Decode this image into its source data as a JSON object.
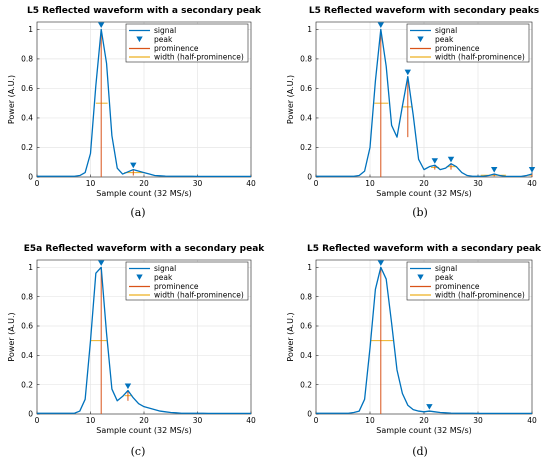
{
  "chart_data": [
    {
      "type": "line",
      "panel": "a",
      "caption": "(a)",
      "title": "L5 Reflected waveform with a secondary peak",
      "xlabel": "Sample count (32 MS/s)",
      "ylabel": "Power (A.U.)",
      "xlim": [
        0,
        40
      ],
      "ylim": [
        0,
        1.05
      ],
      "xticks": [
        "0",
        "10",
        "20",
        "30",
        "40"
      ],
      "yticks": [
        "0",
        "0.2",
        "0.4",
        "0.6",
        "0.8",
        "1"
      ],
      "grid": true,
      "legend_position": "top-right",
      "legend": [
        "signal",
        "peak",
        "prominence",
        "width (half-prominence)"
      ],
      "series": [
        {
          "x": [
            0,
            1,
            2,
            3,
            4,
            5,
            6,
            7,
            8,
            9,
            10,
            11,
            12,
            13,
            14,
            15,
            16,
            17,
            18,
            19,
            20,
            21,
            22,
            23,
            24,
            25,
            26,
            27,
            28,
            29,
            30,
            31,
            32,
            33,
            34,
            35,
            36,
            37,
            38,
            39,
            40
          ],
          "y": [
            0.005,
            0.005,
            0.005,
            0.005,
            0.005,
            0.005,
            0.005,
            0.005,
            0.01,
            0.03,
            0.16,
            0.62,
            1.0,
            0.77,
            0.28,
            0.06,
            0.02,
            0.035,
            0.05,
            0.04,
            0.03,
            0.02,
            0.01,
            0.008,
            0.006,
            0.005,
            0.005,
            0.005,
            0.005,
            0.005,
            0.004,
            0.004,
            0.004,
            0.004,
            0.004,
            0.004,
            0.004,
            0.004,
            0.004,
            0.004,
            0.004
          ]
        }
      ],
      "peaks": [
        {
          "x": 12,
          "y": 1.0,
          "prominence": 1.0,
          "width_y": 0.5,
          "width_left": 11.0,
          "width_right": 13.2
        },
        {
          "x": 18,
          "y": 0.05,
          "prominence": 0.04,
          "width_y": 0.03,
          "width_left": 16.3,
          "width_right": 20.2
        }
      ]
    },
    {
      "type": "line",
      "panel": "b",
      "caption": "(b)",
      "title": "L5 Reflected waveform with secondary peaks",
      "xlabel": "Sample count (32 MS/s)",
      "ylabel": "Power (A.U.)",
      "xlim": [
        0,
        40
      ],
      "ylim": [
        0,
        1.05
      ],
      "xticks": [
        "0",
        "10",
        "20",
        "30",
        "40"
      ],
      "yticks": [
        "0",
        "0.2",
        "0.4",
        "0.6",
        "0.8",
        "1"
      ],
      "grid": true,
      "legend_position": "top-right",
      "legend": [
        "signal",
        "peak",
        "prominence",
        "width (half-prominence)"
      ],
      "series": [
        {
          "x": [
            0,
            1,
            2,
            3,
            4,
            5,
            6,
            7,
            8,
            9,
            10,
            11,
            12,
            13,
            14,
            15,
            16,
            17,
            18,
            19,
            20,
            21,
            22,
            23,
            24,
            25,
            26,
            27,
            28,
            29,
            30,
            31,
            32,
            33,
            34,
            35,
            36,
            37,
            38,
            39,
            40
          ],
          "y": [
            0.005,
            0.005,
            0.005,
            0.005,
            0.005,
            0.005,
            0.005,
            0.005,
            0.01,
            0.04,
            0.2,
            0.65,
            1.0,
            0.75,
            0.35,
            0.27,
            0.48,
            0.68,
            0.42,
            0.12,
            0.05,
            0.07,
            0.08,
            0.05,
            0.06,
            0.09,
            0.07,
            0.03,
            0.01,
            0.005,
            0.005,
            0.005,
            0.01,
            0.02,
            0.01,
            0.005,
            0.004,
            0.004,
            0.004,
            0.01,
            0.02
          ]
        }
      ],
      "peaks": [
        {
          "x": 12,
          "y": 1.0,
          "prominence": 1.0,
          "width_y": 0.5,
          "width_left": 10.8,
          "width_right": 13.4
        },
        {
          "x": 17,
          "y": 0.68,
          "prominence": 0.41,
          "width_y": 0.475,
          "width_left": 16.0,
          "width_right": 17.8
        },
        {
          "x": 22,
          "y": 0.08,
          "prominence": 0.03,
          "width_y": 0.065,
          "width_left": 21.3,
          "width_right": 22.8
        },
        {
          "x": 25,
          "y": 0.09,
          "prominence": 0.04,
          "width_y": 0.07,
          "width_left": 24.2,
          "width_right": 26.1
        },
        {
          "x": 33,
          "y": 0.02,
          "prominence": 0.015,
          "width_y": 0.012,
          "width_left": 30.5,
          "width_right": 35.2
        },
        {
          "x": 40,
          "y": 0.02,
          "prominence": 0.016,
          "width_y": 0.012,
          "width_left": 39.3,
          "width_right": 40.0
        }
      ]
    },
    {
      "type": "line",
      "panel": "c",
      "caption": "(c)",
      "title": "E5a Reflected waveform with a secondary peak",
      "xlabel": "Sample count (32 MS/s)",
      "ylabel": "Power (A.U.)",
      "xlim": [
        0,
        40
      ],
      "ylim": [
        0,
        1.05
      ],
      "xticks": [
        "0",
        "10",
        "20",
        "30",
        "40"
      ],
      "yticks": [
        "0",
        "0.2",
        "0.4",
        "0.6",
        "0.8",
        "1"
      ],
      "grid": true,
      "legend_position": "top-right",
      "legend": [
        "signal",
        "peak",
        "prominence",
        "width (half-prominence)"
      ],
      "series": [
        {
          "x": [
            0,
            1,
            2,
            3,
            4,
            5,
            6,
            7,
            8,
            9,
            10,
            11,
            12,
            13,
            14,
            15,
            16,
            17,
            18,
            19,
            20,
            21,
            22,
            23,
            24,
            25,
            26,
            27,
            28,
            29,
            30,
            31,
            32,
            33,
            34,
            35,
            36,
            37,
            38,
            39,
            40
          ],
          "y": [
            0.005,
            0.005,
            0.005,
            0.005,
            0.005,
            0.005,
            0.005,
            0.005,
            0.02,
            0.1,
            0.5,
            0.96,
            1.0,
            0.55,
            0.17,
            0.09,
            0.12,
            0.16,
            0.11,
            0.07,
            0.05,
            0.04,
            0.03,
            0.02,
            0.015,
            0.01,
            0.008,
            0.005,
            0.005,
            0.005,
            0.005,
            0.005,
            0.004,
            0.004,
            0.004,
            0.004,
            0.004,
            0.004,
            0.004,
            0.004,
            0.004
          ]
        }
      ],
      "peaks": [
        {
          "x": 12,
          "y": 1.0,
          "prominence": 1.0,
          "width_y": 0.5,
          "width_left": 10.0,
          "width_right": 13.0
        },
        {
          "x": 17,
          "y": 0.16,
          "prominence": 0.07,
          "width_y": 0.125,
          "width_left": 16.4,
          "width_right": 17.8
        }
      ]
    },
    {
      "type": "line",
      "panel": "d",
      "caption": "(d)",
      "title": "L5 Reflected waveform with a secondary peak",
      "xlabel": "Sample count (32 MS/s)",
      "ylabel": "Power (A.U.)",
      "xlim": [
        0,
        40
      ],
      "ylim": [
        0,
        1.05
      ],
      "xticks": [
        "0",
        "10",
        "20",
        "30",
        "40"
      ],
      "yticks": [
        "0",
        "0.2",
        "0.4",
        "0.6",
        "0.8",
        "1"
      ],
      "grid": true,
      "legend_position": "top-right",
      "legend": [
        "signal",
        "peak",
        "prominence",
        "width (half-prominence)"
      ],
      "series": [
        {
          "x": [
            0,
            1,
            2,
            3,
            4,
            5,
            6,
            7,
            8,
            9,
            10,
            11,
            12,
            13,
            14,
            15,
            16,
            17,
            18,
            19,
            20,
            21,
            22,
            23,
            24,
            25,
            26,
            27,
            28,
            29,
            30,
            31,
            32,
            33,
            34,
            35,
            36,
            37,
            38,
            39,
            40
          ],
          "y": [
            0.005,
            0.005,
            0.005,
            0.005,
            0.005,
            0.005,
            0.005,
            0.01,
            0.02,
            0.1,
            0.45,
            0.85,
            1.0,
            0.92,
            0.62,
            0.3,
            0.14,
            0.06,
            0.03,
            0.02,
            0.015,
            0.02,
            0.015,
            0.01,
            0.008,
            0.006,
            0.005,
            0.005,
            0.005,
            0.005,
            0.004,
            0.004,
            0.004,
            0.004,
            0.004,
            0.004,
            0.004,
            0.004,
            0.004,
            0.004,
            0.004
          ]
        }
      ],
      "peaks": [
        {
          "x": 12,
          "y": 1.0,
          "prominence": 1.0,
          "width_y": 0.5,
          "width_left": 10.2,
          "width_right": 14.3
        },
        {
          "x": 21,
          "y": 0.02,
          "prominence": 0.006,
          "width_y": 0.017,
          "width_left": 20.5,
          "width_right": 21.6
        }
      ]
    }
  ],
  "colors": {
    "signal": "#0072BD",
    "peak": "#0072BD",
    "prominence": "#D95319",
    "width": "#EDB120",
    "grid": "#e6e6e6",
    "axis": "#262626"
  }
}
